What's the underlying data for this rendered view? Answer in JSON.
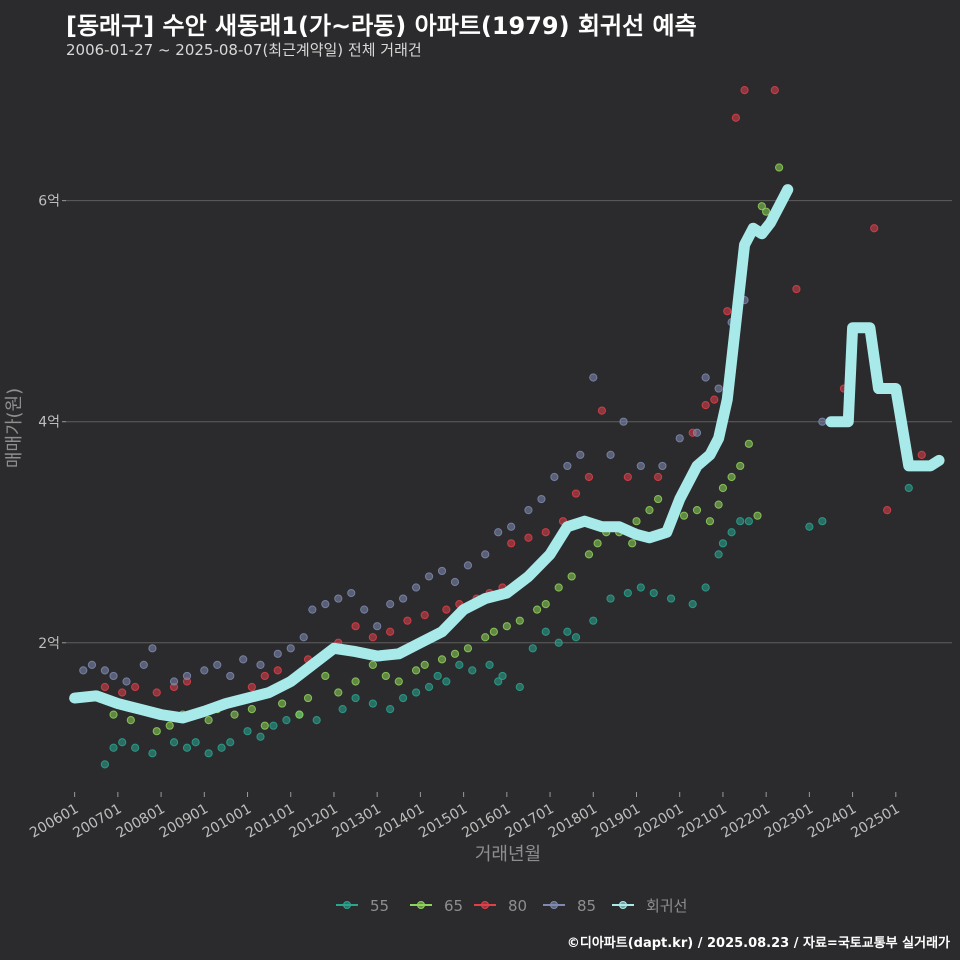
{
  "title": "[동래구] 수안 새동래1(가~라동) 아파트(1979) 회귀선 예측",
  "subtitle": "2006-01-27 ~ 2025-08-07(최근계약일) 전체 거래건",
  "footer": "©디아파트(dapt.kr) / 2025.08.23 / 자료=국토교통부 실거래가",
  "colors": {
    "background": "#2b2b2d",
    "grid": "#5e5e5e",
    "s55": "#2aa58f",
    "s65": "#8fd45a",
    "s80": "#e0404a",
    "s85": "#7f8ab0",
    "regression": "#a8eaea"
  },
  "chart_data": {
    "type": "scatter",
    "title": "[동래구] 수안 새동래1(가~라동) 아파트(1979) 회귀선 예측",
    "xlabel": "거래년월",
    "ylabel": "매매가(원)",
    "xlim": [
      2005.8,
      2026.3
    ],
    "ylim": [
      0.65,
      7.2
    ],
    "y_unit": "억",
    "y_ticks": [
      2,
      4,
      6
    ],
    "y_tick_labels": [
      "2억",
      "4억",
      "6억"
    ],
    "x_ticks": [
      2006,
      2007,
      2008,
      2009,
      2010,
      2011,
      2012,
      2013,
      2014,
      2015,
      2016,
      2017,
      2018,
      2019,
      2020,
      2021,
      2022,
      2023,
      2024,
      2025
    ],
    "x_tick_labels": [
      "200601",
      "200701",
      "200801",
      "200901",
      "201001",
      "201101",
      "201201",
      "201301",
      "201401",
      "201501",
      "201601",
      "201701",
      "201801",
      "201901",
      "202001",
      "202101",
      "202201",
      "202301",
      "202401",
      "202501"
    ],
    "legend": [
      "55",
      "65",
      "80",
      "85",
      "회귀선"
    ],
    "legend_position": "bottom",
    "series": [
      {
        "name": "55",
        "points": [
          [
            2006.7,
            0.9
          ],
          [
            2006.9,
            1.05
          ],
          [
            2007.1,
            1.1
          ],
          [
            2007.4,
            1.05
          ],
          [
            2007.8,
            1.0
          ],
          [
            2008.3,
            1.1
          ],
          [
            2008.6,
            1.05
          ],
          [
            2008.8,
            1.1
          ],
          [
            2009.1,
            1.0
          ],
          [
            2009.4,
            1.05
          ],
          [
            2009.6,
            1.1
          ],
          [
            2010.0,
            1.2
          ],
          [
            2010.3,
            1.15
          ],
          [
            2010.6,
            1.25
          ],
          [
            2010.9,
            1.3
          ],
          [
            2011.2,
            1.35
          ],
          [
            2011.6,
            1.3
          ],
          [
            2012.2,
            1.4
          ],
          [
            2012.5,
            1.5
          ],
          [
            2012.9,
            1.45
          ],
          [
            2013.3,
            1.4
          ],
          [
            2013.6,
            1.5
          ],
          [
            2013.9,
            1.55
          ],
          [
            2014.2,
            1.6
          ],
          [
            2014.4,
            1.7
          ],
          [
            2014.6,
            1.65
          ],
          [
            2014.9,
            1.8
          ],
          [
            2015.2,
            1.75
          ],
          [
            2015.6,
            1.8
          ],
          [
            2015.8,
            1.65
          ],
          [
            2015.9,
            1.7
          ],
          [
            2016.3,
            1.6
          ],
          [
            2016.6,
            1.95
          ],
          [
            2016.9,
            2.1
          ],
          [
            2017.2,
            2.0
          ],
          [
            2017.4,
            2.1
          ],
          [
            2017.6,
            2.05
          ],
          [
            2018.0,
            2.2
          ],
          [
            2018.4,
            2.4
          ],
          [
            2018.8,
            2.45
          ],
          [
            2019.1,
            2.5
          ],
          [
            2019.4,
            2.45
          ],
          [
            2019.8,
            2.4
          ],
          [
            2020.3,
            2.35
          ],
          [
            2020.6,
            2.5
          ],
          [
            2020.9,
            2.8
          ],
          [
            2021.0,
            2.9
          ],
          [
            2021.2,
            3.0
          ],
          [
            2021.4,
            3.1
          ],
          [
            2021.6,
            3.1
          ],
          [
            2023.0,
            3.05
          ],
          [
            2023.3,
            3.1
          ],
          [
            2025.3,
            3.4
          ]
        ]
      },
      {
        "name": "65",
        "points": [
          [
            2006.9,
            1.35
          ],
          [
            2007.3,
            1.3
          ],
          [
            2007.9,
            1.2
          ],
          [
            2008.2,
            1.25
          ],
          [
            2008.5,
            1.35
          ],
          [
            2009.1,
            1.3
          ],
          [
            2009.3,
            1.4
          ],
          [
            2009.7,
            1.35
          ],
          [
            2010.1,
            1.4
          ],
          [
            2010.4,
            1.25
          ],
          [
            2010.8,
            1.45
          ],
          [
            2011.2,
            1.35
          ],
          [
            2011.4,
            1.5
          ],
          [
            2011.8,
            1.7
          ],
          [
            2012.1,
            1.55
          ],
          [
            2012.5,
            1.65
          ],
          [
            2012.9,
            1.8
          ],
          [
            2013.2,
            1.7
          ],
          [
            2013.5,
            1.65
          ],
          [
            2013.9,
            1.75
          ],
          [
            2014.1,
            1.8
          ],
          [
            2014.5,
            1.85
          ],
          [
            2014.8,
            1.9
          ],
          [
            2015.1,
            1.95
          ],
          [
            2015.5,
            2.05
          ],
          [
            2015.7,
            2.1
          ],
          [
            2016.0,
            2.15
          ],
          [
            2016.3,
            2.2
          ],
          [
            2016.7,
            2.3
          ],
          [
            2016.9,
            2.35
          ],
          [
            2017.2,
            2.5
          ],
          [
            2017.5,
            2.6
          ],
          [
            2017.9,
            2.8
          ],
          [
            2018.1,
            2.9
          ],
          [
            2018.3,
            3.0
          ],
          [
            2018.6,
            3.0
          ],
          [
            2018.9,
            2.9
          ],
          [
            2019.0,
            3.1
          ],
          [
            2019.3,
            3.2
          ],
          [
            2019.5,
            3.3
          ],
          [
            2019.8,
            3.1
          ],
          [
            2020.1,
            3.15
          ],
          [
            2020.4,
            3.2
          ],
          [
            2020.7,
            3.1
          ],
          [
            2020.9,
            3.25
          ],
          [
            2021.0,
            3.4
          ],
          [
            2021.2,
            3.5
          ],
          [
            2021.4,
            3.6
          ],
          [
            2021.6,
            3.8
          ],
          [
            2021.8,
            3.15
          ],
          [
            2021.9,
            5.95
          ],
          [
            2022.0,
            5.9
          ],
          [
            2022.3,
            6.3
          ]
        ]
      },
      {
        "name": "80",
        "points": [
          [
            2006.7,
            1.6
          ],
          [
            2007.1,
            1.55
          ],
          [
            2007.4,
            1.6
          ],
          [
            2007.9,
            1.55
          ],
          [
            2008.3,
            1.6
          ],
          [
            2008.6,
            1.65
          ],
          [
            2010.1,
            1.6
          ],
          [
            2010.4,
            1.7
          ],
          [
            2010.7,
            1.75
          ],
          [
            2011.4,
            1.85
          ],
          [
            2011.8,
            1.9
          ],
          [
            2012.1,
            2.0
          ],
          [
            2012.5,
            2.15
          ],
          [
            2012.9,
            2.05
          ],
          [
            2013.3,
            2.1
          ],
          [
            2013.7,
            2.2
          ],
          [
            2014.1,
            2.25
          ],
          [
            2014.6,
            2.3
          ],
          [
            2014.9,
            2.35
          ],
          [
            2015.3,
            2.4
          ],
          [
            2015.6,
            2.45
          ],
          [
            2015.9,
            2.5
          ],
          [
            2016.1,
            2.9
          ],
          [
            2016.5,
            2.95
          ],
          [
            2016.9,
            3.0
          ],
          [
            2017.3,
            3.1
          ],
          [
            2017.6,
            3.35
          ],
          [
            2017.9,
            3.5
          ],
          [
            2018.2,
            4.1
          ],
          [
            2018.8,
            3.5
          ],
          [
            2019.5,
            3.5
          ],
          [
            2020.3,
            3.9
          ],
          [
            2020.6,
            4.15
          ],
          [
            2020.8,
            4.2
          ],
          [
            2021.1,
            5.0
          ],
          [
            2021.3,
            6.75
          ],
          [
            2021.5,
            7.0
          ],
          [
            2022.2,
            7.0
          ],
          [
            2022.7,
            5.2
          ],
          [
            2023.8,
            4.3
          ],
          [
            2024.5,
            5.75
          ],
          [
            2024.8,
            3.2
          ],
          [
            2025.6,
            3.7
          ]
        ]
      },
      {
        "name": "85",
        "points": [
          [
            2006.2,
            1.75
          ],
          [
            2006.4,
            1.8
          ],
          [
            2006.7,
            1.75
          ],
          [
            2006.9,
            1.7
          ],
          [
            2007.2,
            1.65
          ],
          [
            2007.6,
            1.8
          ],
          [
            2007.8,
            1.95
          ],
          [
            2008.3,
            1.65
          ],
          [
            2008.6,
            1.7
          ],
          [
            2009.0,
            1.75
          ],
          [
            2009.3,
            1.8
          ],
          [
            2009.6,
            1.7
          ],
          [
            2009.9,
            1.85
          ],
          [
            2010.3,
            1.8
          ],
          [
            2010.7,
            1.9
          ],
          [
            2011.0,
            1.95
          ],
          [
            2011.3,
            2.05
          ],
          [
            2011.5,
            2.3
          ],
          [
            2011.8,
            2.35
          ],
          [
            2012.1,
            2.4
          ],
          [
            2012.4,
            2.45
          ],
          [
            2012.7,
            2.3
          ],
          [
            2013.0,
            2.15
          ],
          [
            2013.3,
            2.35
          ],
          [
            2013.6,
            2.4
          ],
          [
            2013.9,
            2.5
          ],
          [
            2014.2,
            2.6
          ],
          [
            2014.5,
            2.65
          ],
          [
            2014.8,
            2.55
          ],
          [
            2015.1,
            2.7
          ],
          [
            2015.5,
            2.8
          ],
          [
            2015.8,
            3.0
          ],
          [
            2016.1,
            3.05
          ],
          [
            2016.5,
            3.2
          ],
          [
            2016.8,
            3.3
          ],
          [
            2017.1,
            3.5
          ],
          [
            2017.4,
            3.6
          ],
          [
            2017.7,
            3.7
          ],
          [
            2018.0,
            4.4
          ],
          [
            2018.4,
            3.7
          ],
          [
            2018.7,
            4.0
          ],
          [
            2019.1,
            3.6
          ],
          [
            2019.6,
            3.6
          ],
          [
            2020.0,
            3.85
          ],
          [
            2020.4,
            3.9
          ],
          [
            2020.6,
            4.4
          ],
          [
            2020.9,
            4.3
          ],
          [
            2021.2,
            4.9
          ],
          [
            2021.4,
            5.3
          ],
          [
            2021.5,
            5.1
          ],
          [
            2023.3,
            4.0
          ],
          [
            2025.1,
            4.0
          ]
        ]
      }
    ],
    "regression": {
      "name": "회귀선",
      "points": [
        [
          2006.0,
          1.5
        ],
        [
          2006.5,
          1.52
        ],
        [
          2007.0,
          1.45
        ],
        [
          2007.5,
          1.4
        ],
        [
          2008.0,
          1.35
        ],
        [
          2008.5,
          1.32
        ],
        [
          2009.0,
          1.38
        ],
        [
          2009.5,
          1.45
        ],
        [
          2010.0,
          1.5
        ],
        [
          2010.5,
          1.55
        ],
        [
          2011.0,
          1.65
        ],
        [
          2011.5,
          1.8
        ],
        [
          2012.0,
          1.95
        ],
        [
          2012.5,
          1.92
        ],
        [
          2013.0,
          1.88
        ],
        [
          2013.5,
          1.9
        ],
        [
          2014.0,
          2.0
        ],
        [
          2014.5,
          2.1
        ],
        [
          2015.0,
          2.3
        ],
        [
          2015.5,
          2.4
        ],
        [
          2016.0,
          2.45
        ],
        [
          2016.5,
          2.6
        ],
        [
          2017.0,
          2.8
        ],
        [
          2017.4,
          3.05
        ],
        [
          2017.8,
          3.1
        ],
        [
          2018.2,
          3.05
        ],
        [
          2018.6,
          3.05
        ],
        [
          2019.0,
          2.98
        ],
        [
          2019.3,
          2.95
        ],
        [
          2019.7,
          3.0
        ],
        [
          2020.0,
          3.3
        ],
        [
          2020.4,
          3.6
        ],
        [
          2020.7,
          3.7
        ],
        [
          2020.9,
          3.85
        ],
        [
          2021.1,
          4.2
        ],
        [
          2021.3,
          4.9
        ],
        [
          2021.5,
          5.6
        ],
        [
          2021.7,
          5.75
        ],
        [
          2021.9,
          5.7
        ],
        [
          2022.1,
          5.8
        ],
        [
          2022.3,
          5.95
        ],
        [
          2022.5,
          6.1
        ],
        [
          2023.5,
          4.0
        ],
        [
          2023.9,
          4.0
        ],
        [
          2024.0,
          4.85
        ],
        [
          2024.4,
          4.85
        ],
        [
          2024.6,
          4.3
        ],
        [
          2025.0,
          4.3
        ],
        [
          2025.3,
          3.6
        ],
        [
          2025.8,
          3.6
        ],
        [
          2026.0,
          3.65
        ]
      ]
    }
  }
}
